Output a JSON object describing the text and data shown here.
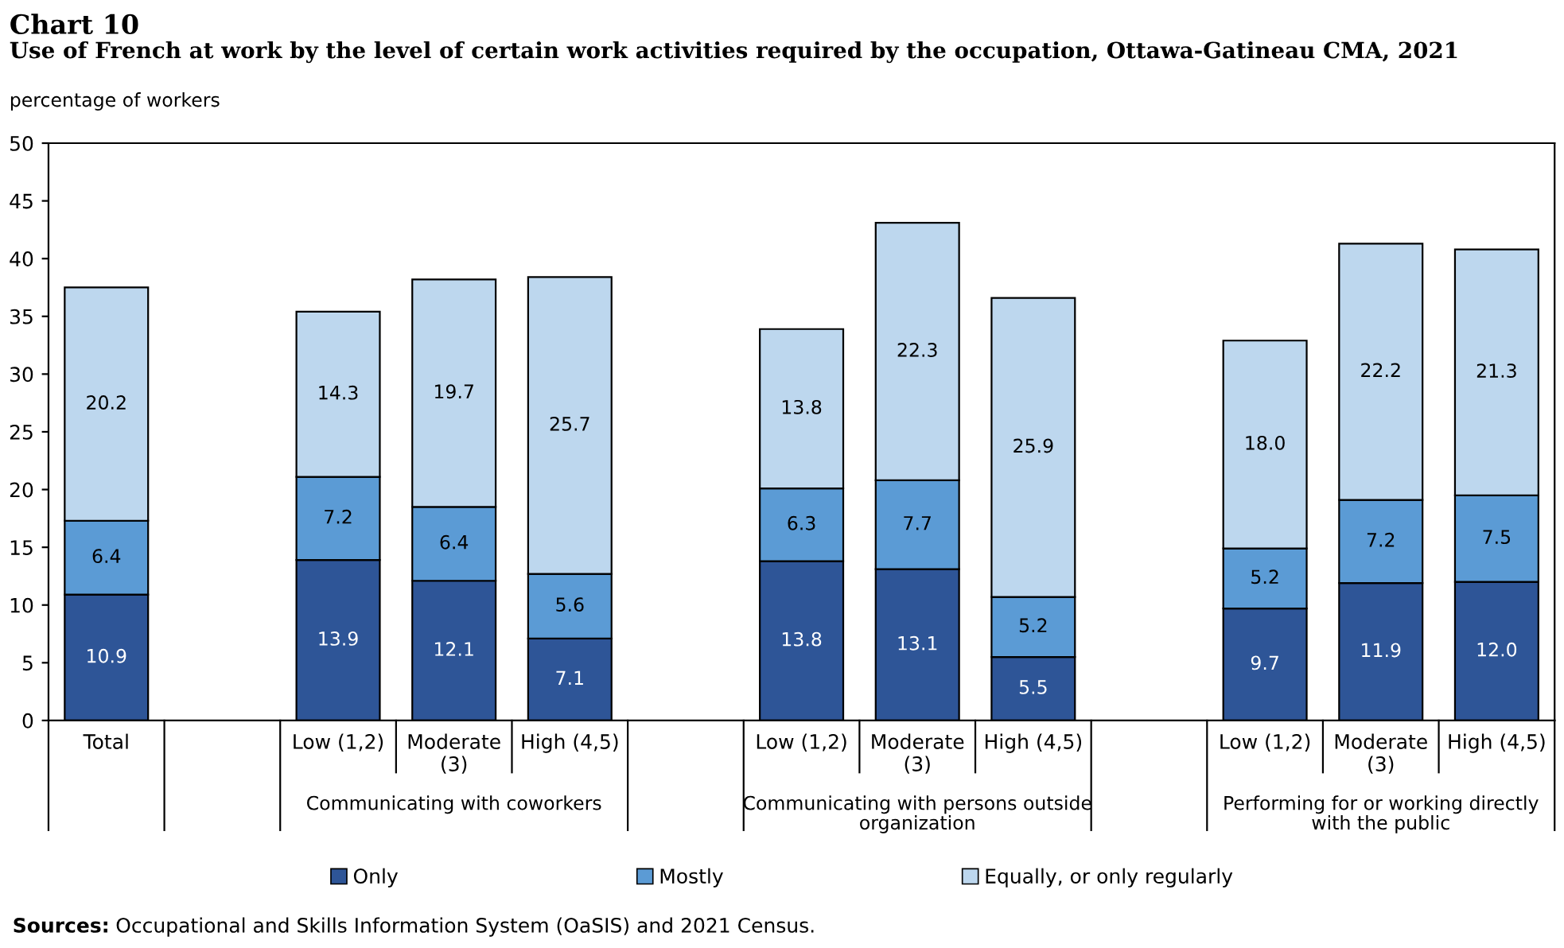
{
  "chart_data": {
    "type": "bar",
    "stacked": true,
    "title": "Chart 10",
    "subtitle": "Use of French at work by the level of certain work activities required by the occupation, Ottawa-Gatineau CMA, 2021",
    "ylabel": "percentage of workers",
    "categories": [
      "Total",
      null,
      "Low (1,2)",
      "Moderate (3)",
      "High (4,5)",
      null,
      "Low (1,2)",
      "Moderate (3)",
      "High (4,5)",
      null,
      "Low (1,2)",
      "Moderate (3)",
      "High (4,5)"
    ],
    "series": [
      {
        "name": "Only",
        "color": "#2e5597",
        "values": [
          10.9,
          null,
          13.9,
          12.1,
          7.1,
          null,
          13.8,
          13.1,
          5.5,
          null,
          9.7,
          11.9,
          12.0
        ],
        "value_labels": [
          "10.9",
          null,
          "13.9",
          "12.1",
          "7.1",
          null,
          "13.8",
          "13.1",
          "5.5",
          null,
          "9.7",
          "11.9",
          "12.0"
        ]
      },
      {
        "name": "Mostly",
        "color": "#5b9bd5",
        "values": [
          6.4,
          null,
          7.2,
          6.4,
          5.6,
          null,
          6.3,
          7.7,
          5.2,
          null,
          5.2,
          7.2,
          7.5
        ],
        "value_labels": [
          "6.4",
          null,
          "7.2",
          "6.4",
          "5.6",
          null,
          "6.3",
          "7.7",
          "5.2",
          null,
          "5.2",
          "7.2",
          "7.5"
        ]
      },
      {
        "name": "Equally, or only regularly",
        "color": "#bdd7ee",
        "values": [
          20.2,
          null,
          14.3,
          19.7,
          25.7,
          null,
          13.8,
          22.3,
          25.9,
          null,
          18.0,
          22.2,
          21.3
        ],
        "value_labels": [
          "20.2",
          null,
          "14.3",
          "19.7",
          "25.7",
          null,
          "13.8",
          "22.3",
          "25.9",
          null,
          "18.0",
          "22.2",
          "21.3"
        ]
      }
    ],
    "ylim": [
      0,
      50
    ],
    "yticks": [
      0,
      5,
      10,
      15,
      20,
      25,
      30,
      35,
      40,
      45,
      50
    ],
    "grid": false,
    "legend": "bottom",
    "annotations": [
      "Communicating with coworkers",
      "Communicating with persons outside organization",
      "Performing for or working directly with the public",
      "Sources: Occupational and Skills Information System (OaSIS) and 2021 Census."
    ]
  }
}
